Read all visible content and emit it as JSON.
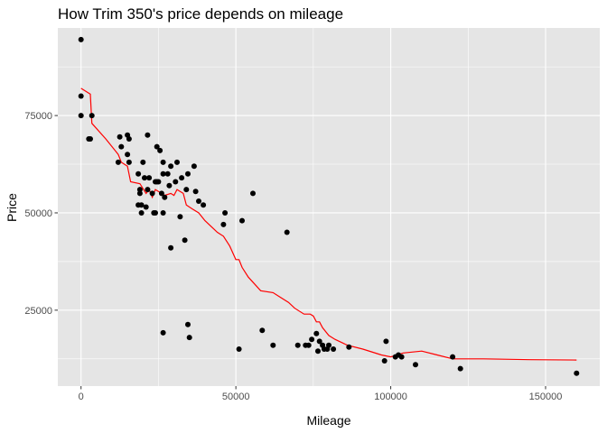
{
  "chart_data": {
    "type": "scatter",
    "title": "How Trim 350's price depends on mileage",
    "xlabel": "Mileage",
    "ylabel": "Price",
    "xlim": [
      -7500,
      167500
    ],
    "ylim": [
      5500,
      97500
    ],
    "x_ticks": [
      0,
      50000,
      100000,
      150000
    ],
    "x_tick_labels": [
      "0",
      "50000",
      "100000",
      "150000"
    ],
    "y_ticks": [
      25000,
      50000,
      75000
    ],
    "y_tick_labels": [
      "25000",
      "50000",
      "75000"
    ],
    "grid": true,
    "legend": "none",
    "colors": {
      "panel_bg": "#e5e5e5",
      "grid": "#ffffff",
      "points": "#000000",
      "smooth_line": "#ff0000",
      "ticks": "#333333"
    },
    "series": [
      {
        "type": "scatter",
        "points": [
          [
            0,
            94500
          ],
          [
            0,
            80000
          ],
          [
            0,
            75000
          ],
          [
            2500,
            69000
          ],
          [
            3000,
            69000
          ],
          [
            3500,
            75000
          ],
          [
            12000,
            63000
          ],
          [
            12500,
            69500
          ],
          [
            13000,
            67000
          ],
          [
            15000,
            70000
          ],
          [
            15000,
            65000
          ],
          [
            15500,
            69000
          ],
          [
            15500,
            63000
          ],
          [
            18500,
            52000
          ],
          [
            18500,
            60000
          ],
          [
            19000,
            56000
          ],
          [
            19000,
            55000
          ],
          [
            19500,
            52000
          ],
          [
            19500,
            50000
          ],
          [
            20000,
            63000
          ],
          [
            20500,
            59000
          ],
          [
            21000,
            51500
          ],
          [
            21500,
            70000
          ],
          [
            21500,
            56000
          ],
          [
            22000,
            59000
          ],
          [
            23000,
            55000
          ],
          [
            23500,
            50000
          ],
          [
            24000,
            58000
          ],
          [
            24000,
            50000
          ],
          [
            24500,
            67000
          ],
          [
            24500,
            58000
          ],
          [
            25000,
            58000
          ],
          [
            25500,
            66000
          ],
          [
            26000,
            55000
          ],
          [
            26500,
            63000
          ],
          [
            26500,
            60000
          ],
          [
            26500,
            50000
          ],
          [
            27000,
            54000
          ],
          [
            28000,
            60000
          ],
          [
            28500,
            57000
          ],
          [
            29000,
            62000
          ],
          [
            29000,
            41000
          ],
          [
            30500,
            58000
          ],
          [
            31000,
            63000
          ],
          [
            32000,
            49000
          ],
          [
            32500,
            59000
          ],
          [
            33500,
            43000
          ],
          [
            34000,
            56000
          ],
          [
            34500,
            60000
          ],
          [
            36500,
            62000
          ],
          [
            37000,
            55500
          ],
          [
            38000,
            53000
          ],
          [
            39500,
            52000
          ],
          [
            46000,
            47000
          ],
          [
            46500,
            50000
          ],
          [
            26500,
            19200
          ],
          [
            34500,
            21300
          ],
          [
            35000,
            18000
          ],
          [
            51000,
            15000
          ],
          [
            52000,
            48000
          ],
          [
            55500,
            55000
          ],
          [
            58500,
            19800
          ],
          [
            62000,
            16000
          ],
          [
            66500,
            45000
          ],
          [
            70000,
            16000
          ],
          [
            72500,
            16000
          ],
          [
            73500,
            16000
          ],
          [
            74500,
            17500
          ],
          [
            76000,
            19000
          ],
          [
            76500,
            14500
          ],
          [
            77000,
            17000
          ],
          [
            78000,
            16000
          ],
          [
            78500,
            15000
          ],
          [
            79500,
            15000
          ],
          [
            80000,
            16000
          ],
          [
            81500,
            15000
          ],
          [
            86500,
            15500
          ],
          [
            98000,
            12000
          ],
          [
            98500,
            17000
          ],
          [
            101500,
            13000
          ],
          [
            102500,
            13500
          ],
          [
            103500,
            13000
          ],
          [
            108000,
            11000
          ],
          [
            120000,
            13000
          ],
          [
            122500,
            10000
          ],
          [
            160000,
            8800
          ]
        ]
      },
      {
        "type": "line",
        "points": [
          [
            0,
            82000
          ],
          [
            3000,
            80500
          ],
          [
            3500,
            73000
          ],
          [
            8000,
            69000
          ],
          [
            12000,
            65000
          ],
          [
            13000,
            63000
          ],
          [
            15000,
            62000
          ],
          [
            16000,
            58000
          ],
          [
            19000,
            57500
          ],
          [
            21000,
            55000
          ],
          [
            22000,
            56000
          ],
          [
            23000,
            54000
          ],
          [
            24000,
            56000
          ],
          [
            25000,
            55500
          ],
          [
            27000,
            54500
          ],
          [
            29000,
            55000
          ],
          [
            30000,
            54500
          ],
          [
            31000,
            56000
          ],
          [
            32000,
            55500
          ],
          [
            33000,
            55000
          ],
          [
            34000,
            52000
          ],
          [
            36000,
            51000
          ],
          [
            38000,
            50000
          ],
          [
            40000,
            48000
          ],
          [
            44000,
            45000
          ],
          [
            46000,
            44000
          ],
          [
            48000,
            41500
          ],
          [
            50000,
            38000
          ],
          [
            51000,
            38000
          ],
          [
            52000,
            36000
          ],
          [
            54000,
            33500
          ],
          [
            58000,
            30000
          ],
          [
            62000,
            29500
          ],
          [
            64000,
            28500
          ],
          [
            67000,
            27000
          ],
          [
            69000,
            25500
          ],
          [
            72000,
            24000
          ],
          [
            74000,
            24000
          ],
          [
            75000,
            23500
          ],
          [
            76000,
            22000
          ],
          [
            77000,
            22000
          ],
          [
            78000,
            20500
          ],
          [
            80000,
            18500
          ],
          [
            82000,
            17500
          ],
          [
            86000,
            16000
          ],
          [
            91000,
            15000
          ],
          [
            97000,
            13500
          ],
          [
            100000,
            13000
          ],
          [
            104000,
            14000
          ],
          [
            110000,
            14500
          ],
          [
            115000,
            13500
          ],
          [
            120000,
            12500
          ],
          [
            130000,
            12500
          ],
          [
            145000,
            12300
          ],
          [
            160000,
            12200
          ]
        ]
      }
    ]
  }
}
